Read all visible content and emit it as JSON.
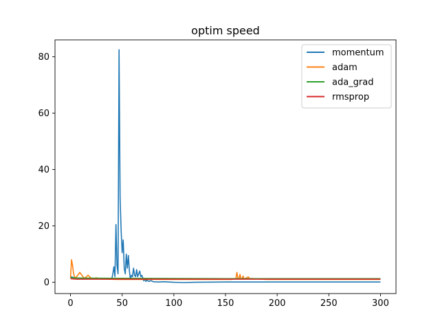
{
  "chart_data": {
    "type": "line",
    "title": "optim speed",
    "xlabel": "",
    "ylabel": "",
    "xlim": [
      -15,
      315
    ],
    "ylim": [
      -4,
      86
    ],
    "xticks": [
      0,
      50,
      100,
      150,
      200,
      250,
      300
    ],
    "yticks": [
      0,
      20,
      40,
      60,
      80
    ],
    "grid": false,
    "legend_position": "top-right",
    "series": [
      {
        "name": "momentum",
        "color": "#1f77b4",
        "points": [
          [
            0,
            2.0
          ],
          [
            5,
            1.5
          ],
          [
            10,
            1.4
          ],
          [
            20,
            1.3
          ],
          [
            30,
            1.2
          ],
          [
            40,
            1.3
          ],
          [
            41,
            3
          ],
          [
            42,
            5.5
          ],
          [
            43,
            2
          ],
          [
            44,
            20.5
          ],
          [
            45,
            6
          ],
          [
            46,
            3
          ],
          [
            47,
            82.5
          ],
          [
            48,
            30
          ],
          [
            49,
            18.5
          ],
          [
            50,
            10.5
          ],
          [
            51,
            15
          ],
          [
            52,
            5
          ],
          [
            53,
            3
          ],
          [
            54,
            10
          ],
          [
            55,
            5
          ],
          [
            56,
            9.5
          ],
          [
            57,
            4
          ],
          [
            58,
            1
          ],
          [
            59,
            2.5
          ],
          [
            60,
            2
          ],
          [
            61,
            5
          ],
          [
            62,
            2.5
          ],
          [
            63,
            2
          ],
          [
            64,
            4.5
          ],
          [
            65,
            2
          ],
          [
            66,
            3
          ],
          [
            67,
            4
          ],
          [
            68,
            2
          ],
          [
            69,
            2.5
          ],
          [
            70,
            1.5
          ],
          [
            71,
            0.5
          ],
          [
            72,
            1.2
          ],
          [
            73,
            0.3
          ],
          [
            74,
            0.8
          ],
          [
            75,
            0.5
          ],
          [
            76,
            0.3
          ],
          [
            78,
            0.6
          ],
          [
            80,
            0.2
          ],
          [
            85,
            0.1
          ],
          [
            90,
            0.2
          ],
          [
            100,
            0.0
          ],
          [
            110,
            -0.1
          ],
          [
            120,
            0.0
          ],
          [
            150,
            0.1
          ],
          [
            200,
            0.1
          ],
          [
            250,
            0.1
          ],
          [
            300,
            0.1
          ]
        ]
      },
      {
        "name": "adam",
        "color": "#ff7f0e",
        "points": [
          [
            0,
            1.5
          ],
          [
            1,
            8
          ],
          [
            2,
            6
          ],
          [
            3,
            3
          ],
          [
            4,
            2
          ],
          [
            5,
            1.5
          ],
          [
            7,
            2.5
          ],
          [
            9,
            3.5
          ],
          [
            11,
            2.5
          ],
          [
            13,
            1.5
          ],
          [
            15,
            1.8
          ],
          [
            17,
            2.5
          ],
          [
            19,
            1.8
          ],
          [
            21,
            1.2
          ],
          [
            23,
            1.3
          ],
          [
            25,
            1.6
          ],
          [
            28,
            1.2
          ],
          [
            35,
            1.1
          ],
          [
            45,
            1.0
          ],
          [
            60,
            1.0
          ],
          [
            100,
            1.0
          ],
          [
            155,
            1.0
          ],
          [
            160,
            1.2
          ],
          [
            161,
            3.5
          ],
          [
            162,
            1.5
          ],
          [
            163,
            1.2
          ],
          [
            164,
            2.8
          ],
          [
            165,
            1.3
          ],
          [
            166,
            1.2
          ],
          [
            167,
            2.2
          ],
          [
            168,
            1.2
          ],
          [
            170,
            1.5
          ],
          [
            172,
            1.9
          ],
          [
            174,
            1.2
          ],
          [
            176,
            1.4
          ],
          [
            178,
            1.1
          ],
          [
            180,
            1.3
          ],
          [
            185,
            1.1
          ],
          [
            190,
            1.0
          ],
          [
            200,
            1.0
          ],
          [
            250,
            1.0
          ],
          [
            300,
            1.0
          ]
        ]
      },
      {
        "name": "ada_grad",
        "color": "#2ca02c",
        "points": [
          [
            0,
            1.6
          ],
          [
            10,
            1.5
          ],
          [
            50,
            1.4
          ],
          [
            100,
            1.35
          ],
          [
            150,
            1.3
          ],
          [
            200,
            1.3
          ],
          [
            250,
            1.3
          ],
          [
            300,
            1.3
          ]
        ]
      },
      {
        "name": "rmsprop",
        "color": "#d62728",
        "points": [
          [
            0,
            1.3
          ],
          [
            5,
            1.1
          ],
          [
            10,
            1.1
          ],
          [
            50,
            1.1
          ],
          [
            100,
            1.1
          ],
          [
            150,
            1.1
          ],
          [
            200,
            1.1
          ],
          [
            250,
            1.1
          ],
          [
            300,
            1.1
          ]
        ]
      }
    ]
  }
}
